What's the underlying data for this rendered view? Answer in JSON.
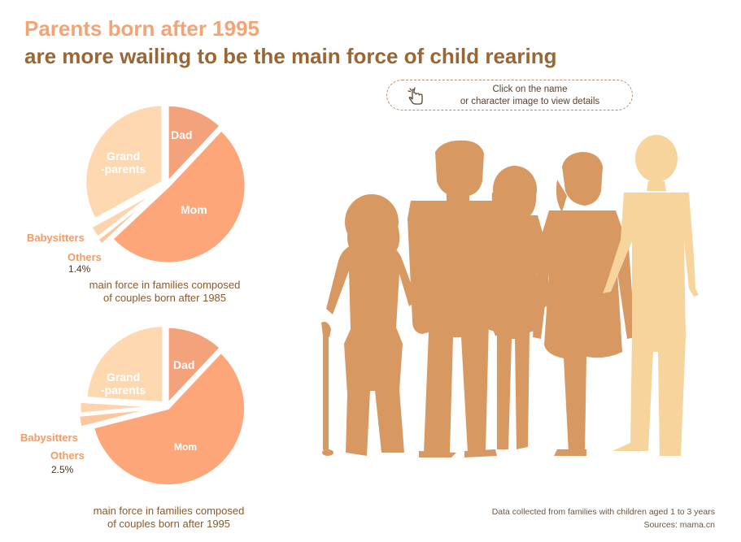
{
  "title": {
    "line1": "Parents born after 1995",
    "line2": "are more wailing to be the main force of child rearing"
  },
  "hint": {
    "line1": "Click on the name",
    "line2": "or character image to view details",
    "icon": "pointer-hand-icon"
  },
  "colors": {
    "dad": "#f4a27b",
    "mom": "#fca67a",
    "grandparents": "#fdd8b1",
    "babysitters": "#fdd4ad",
    "others": "#fcc79f",
    "silhouette": "#d89862",
    "mother_silhouette": "#f7d49c",
    "title_accent": "#f4a474",
    "title_main": "#9a6634"
  },
  "chart_data": [
    {
      "type": "pie",
      "title": "",
      "caption": "main force in families composed\nof couples born after 1985",
      "slices": [
        {
          "label": "Dad",
          "value": 12
        },
        {
          "label": "Mom",
          "value": 51
        },
        {
          "label": "Others",
          "value": 1.4
        },
        {
          "label": "Babysitters",
          "value": 2.6
        },
        {
          "label": "Grand\n-parents",
          "value": 33
        }
      ],
      "annotations": {
        "others_value": "1.4%"
      },
      "legend": "none"
    },
    {
      "type": "pie",
      "title": "",
      "caption": "main force in families composed\nof couples born after 1995",
      "slices": [
        {
          "label": "Dad",
          "value": 12
        },
        {
          "label": "Mom",
          "value": 59
        },
        {
          "label": "Others",
          "value": 2.5
        },
        {
          "label": "Babysitters",
          "value": 2.5
        },
        {
          "label": "Grand\n-parents",
          "value": 24
        }
      ],
      "annotations": {
        "others_value": "2.5%"
      },
      "legend": "none"
    }
  ],
  "footer": {
    "note": "Data collected from families with children aged 1 to 3 years",
    "source": "Sources: mama.cn"
  }
}
